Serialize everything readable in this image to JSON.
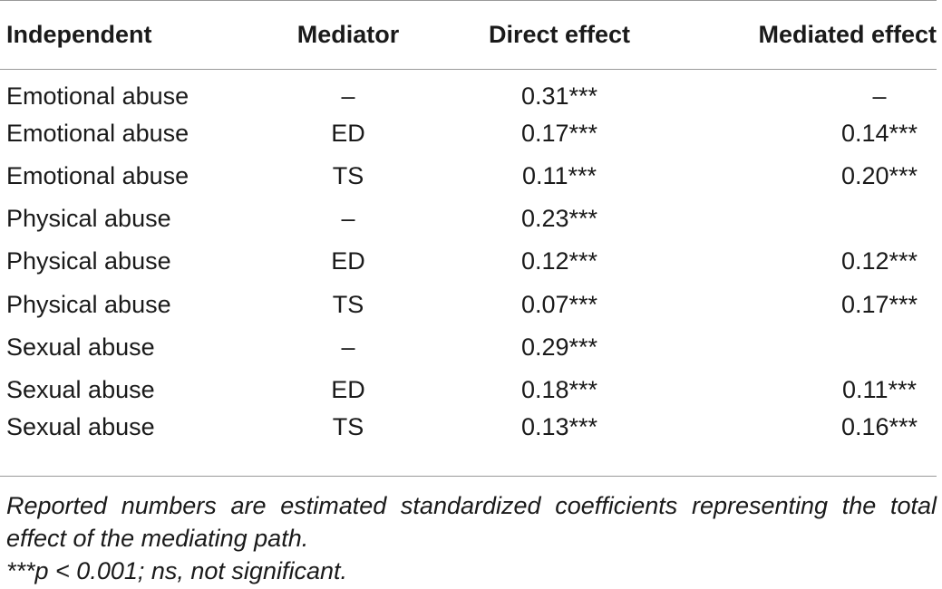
{
  "table": {
    "headers": [
      "Independent",
      "Mediator",
      "Direct effect",
      "Mediated effect"
    ],
    "rows": [
      {
        "independent": "Emotional abuse",
        "mediator": "–",
        "direct": "0.31***",
        "mediated": "–"
      },
      {
        "independent": "Emotional abuse",
        "mediator": "ED",
        "direct": "0.17***",
        "mediated": "0.14***"
      },
      {
        "independent": "Emotional abuse",
        "mediator": "TS",
        "direct": "0.11***",
        "mediated": "0.20***"
      },
      {
        "independent": "Physical abuse",
        "mediator": "–",
        "direct": "0.23***",
        "mediated": ""
      },
      {
        "independent": "Physical abuse",
        "mediator": "ED",
        "direct": "0.12***",
        "mediated": "0.12***"
      },
      {
        "independent": "Physical abuse",
        "mediator": "TS",
        "direct": "0.07***",
        "mediated": "0.17***"
      },
      {
        "independent": "Sexual abuse",
        "mediator": "–",
        "direct": "0.29***",
        "mediated": ""
      },
      {
        "independent": "Sexual abuse",
        "mediator": "ED",
        "direct": "0.18***",
        "mediated": "0.11***"
      },
      {
        "independent": "Sexual abuse",
        "mediator": "TS",
        "direct": "0.13***",
        "mediated": "0.16***"
      }
    ]
  },
  "notes": {
    "line1": "Reported numbers are estimated standardized coefficients representing the total",
    "line2": "effect of the mediating path.",
    "line3": "***p < 0.001; ns, not significant."
  }
}
